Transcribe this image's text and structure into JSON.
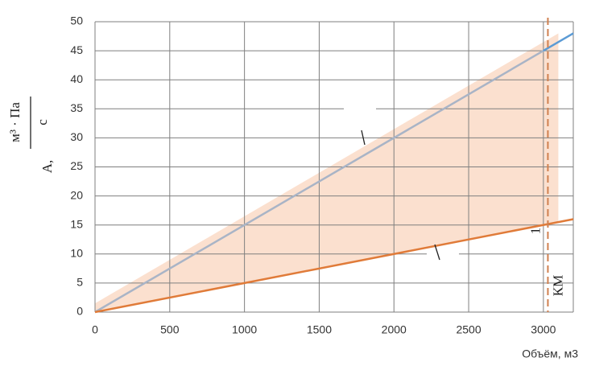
{
  "chart_data": {
    "type": "line",
    "x_label": "Объём, м3",
    "y_label": {
      "prefix": "А,",
      "numerator": "м³ · Па",
      "denominator": "с"
    },
    "xlim": [
      0,
      3200
    ],
    "ylim": [
      0,
      50
    ],
    "xticks": [
      0,
      500,
      1000,
      1500,
      2000,
      2500,
      3000
    ],
    "yticks": [
      0,
      5,
      10,
      15,
      20,
      25,
      30,
      35,
      40,
      45,
      50
    ],
    "grid": true,
    "area": {
      "color": "#fbe0cf",
      "x": [
        0,
        3100
      ],
      "upper": [
        1.5,
        48
      ],
      "lower": [
        0,
        15.5
      ]
    },
    "series": [
      {
        "color": "#a9b4c6",
        "x": [
          0,
          3000
        ],
        "values": [
          0,
          45
        ]
      },
      {
        "color": "#5b9bd5",
        "x": [
          3000,
          3200
        ],
        "values": [
          45,
          48
        ]
      },
      {
        "color": "#e07b39",
        "x": [
          0,
          3200
        ],
        "values": [
          0,
          16
        ]
      }
    ],
    "vline": {
      "x": 3030,
      "color": "#d0804f",
      "label": "КМ"
    },
    "point_label": "1"
  }
}
